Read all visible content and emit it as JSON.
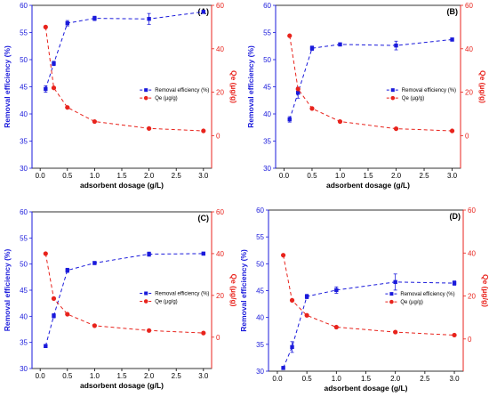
{
  "colors": {
    "removal": "#1a1adb",
    "qe": "#e8231c",
    "axis": "#000000"
  },
  "chart_data": [
    {
      "type": "line",
      "panel_label": "(A)",
      "xlabel": "adsorbent dosage (g/L)",
      "ylabel_left": "Removal efficiency (%)",
      "ylabel_right": "Qe (µg/g)",
      "xlim": [
        -0.15,
        3.15
      ],
      "ylim_left": [
        30,
        60
      ],
      "ylim_right": [
        -15,
        60
      ],
      "xticks": [
        "0.0",
        "0.5",
        "1.0",
        "1.5",
        "2.0",
        "2.5",
        "3.0"
      ],
      "yticks_left": [
        "30",
        "35",
        "40",
        "45",
        "50",
        "55",
        "60"
      ],
      "yticks_right": [
        "0",
        "20",
        "40",
        "60"
      ],
      "legend": [
        "Removal efficiency (%)",
        "Qe (µg/g)"
      ],
      "legend_position": "right",
      "series": [
        {
          "name": "Removal efficiency (%)",
          "axis": "left",
          "x": [
            0.1,
            0.25,
            0.5,
            1.0,
            2.0,
            3.0
          ],
          "y": [
            44.6,
            49.3,
            56.7,
            57.6,
            57.5,
            58.8
          ],
          "err": [
            0.6,
            0.4,
            0.5,
            0.4,
            1.0,
            0.3
          ]
        },
        {
          "name": "Qe (µg/g)",
          "axis": "right",
          "x": [
            0.1,
            0.25,
            0.5,
            1.0,
            2.0,
            3.0
          ],
          "y": [
            50,
            22,
            13,
            6.5,
            3.3,
            2.2
          ]
        }
      ]
    },
    {
      "type": "line",
      "panel_label": "(B)",
      "xlabel": "adsorbent dosage (g/L)",
      "ylabel_left": "Removal efficiency (%)",
      "ylabel_right": "Qe (µg/g)",
      "xlim": [
        -0.15,
        3.15
      ],
      "ylim_left": [
        30,
        60
      ],
      "ylim_right": [
        -15,
        60
      ],
      "xticks": [
        "0.0",
        "0.5",
        "1.0",
        "1.5",
        "2.0",
        "2.5",
        "3.0"
      ],
      "yticks_left": [
        "30",
        "35",
        "40",
        "45",
        "50",
        "55",
        "60"
      ],
      "yticks_right": [
        "0",
        "20",
        "40",
        "60"
      ],
      "legend": [
        "Removal efficiency (%)",
        "Qe (µg/g)"
      ],
      "legend_position": "right",
      "series": [
        {
          "name": "Removal efficiency (%)",
          "axis": "left",
          "x": [
            0.1,
            0.25,
            0.5,
            1.0,
            2.0,
            3.0
          ],
          "y": [
            39.0,
            43.9,
            52.1,
            52.8,
            52.6,
            53.7
          ],
          "err": [
            0.5,
            1.0,
            0.4,
            0.3,
            0.8,
            0.3
          ]
        },
        {
          "name": "Qe (µg/g)",
          "axis": "right",
          "x": [
            0.1,
            0.25,
            0.5,
            1.0,
            2.0,
            3.0
          ],
          "y": [
            46,
            21.5,
            12.5,
            6.5,
            3.2,
            2.2
          ]
        }
      ]
    },
    {
      "type": "line",
      "panel_label": "(C)",
      "xlabel": "adsorbent dosage (g/L)",
      "ylabel_left": "Removal efficiency (%)",
      "ylabel_right": "Qe (µg/g)",
      "xlim": [
        -0.15,
        3.15
      ],
      "ylim_left": [
        30,
        60
      ],
      "ylim_right": [
        -15,
        60
      ],
      "xticks": [
        "0.0",
        "0.5",
        "1.0",
        "1.5",
        "2.0",
        "2.5",
        "3.0"
      ],
      "yticks_left": [
        "30",
        "35",
        "40",
        "45",
        "50",
        "55",
        "60"
      ],
      "yticks_right": [
        "0",
        "20",
        "40",
        "60"
      ],
      "legend": [
        "Removal efficiency (%)",
        "Qe (µg/g)"
      ],
      "legend_position": "right",
      "series": [
        {
          "name": "Removal efficiency (%)",
          "axis": "left",
          "x": [
            0.1,
            0.25,
            0.5,
            1.0,
            2.0,
            3.0
          ],
          "y": [
            34.3,
            40.1,
            48.8,
            50.2,
            51.9,
            52.0
          ],
          "err": [
            0.3,
            0.4,
            0.4,
            0.3,
            0.4,
            0.3
          ]
        },
        {
          "name": "Qe (µg/g)",
          "axis": "right",
          "x": [
            0.1,
            0.25,
            0.5,
            1.0,
            2.0,
            3.0
          ],
          "y": [
            40,
            18.5,
            11,
            5.5,
            3.2,
            2.0
          ]
        }
      ]
    },
    {
      "type": "line",
      "panel_label": "(D)",
      "xlabel": "adsorbent dosage (g/L)",
      "ylabel_left": "Removal efficiency (%)",
      "ylabel_right": "Qe (µg/g)",
      "xlim": [
        -0.15,
        3.15
      ],
      "ylim_left": [
        30,
        60
      ],
      "ylim_right": [
        -15,
        60
      ],
      "xticks": [
        "0.0",
        "0.5",
        "1.0",
        "1.5",
        "2.0",
        "2.5",
        "3.0"
      ],
      "yticks_left": [
        "30",
        "35",
        "40",
        "45",
        "50",
        "55",
        "60"
      ],
      "yticks_right": [
        "0",
        "20",
        "40",
        "60"
      ],
      "legend": [
        "Removal efficiency (%)",
        "Qe (µg/g)"
      ],
      "legend_position": "right",
      "series": [
        {
          "name": "Removal efficiency (%)",
          "axis": "left",
          "x": [
            0.1,
            0.25,
            0.5,
            1.0,
            2.0,
            3.0
          ],
          "y": [
            30.6,
            34.5,
            43.9,
            45.1,
            46.6,
            46.4
          ],
          "err": [
            0.3,
            1.0,
            0.4,
            0.6,
            1.5,
            0.4
          ]
        },
        {
          "name": "Qe (µg/g)",
          "axis": "right",
          "x": [
            0.1,
            0.25,
            0.5,
            1.0,
            2.0,
            3.0
          ],
          "y": [
            39,
            18,
            11,
            5.5,
            3.2,
            1.8
          ]
        }
      ]
    }
  ]
}
